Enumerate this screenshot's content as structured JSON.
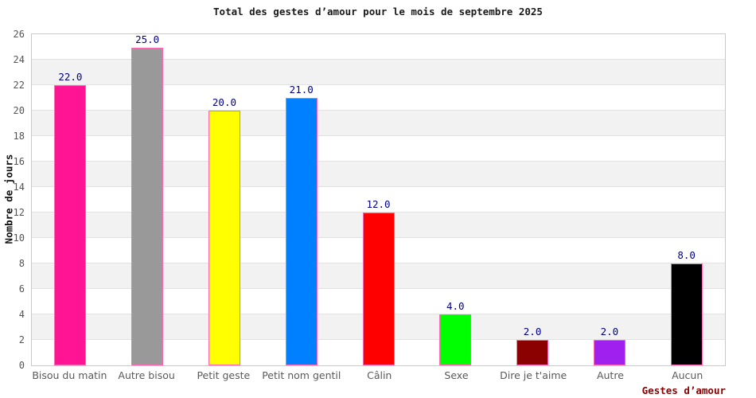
{
  "chart_data": {
    "type": "bar",
    "title": "Total des gestes d’amour pour le mois de septembre 2025",
    "xlabel": "Gestes d’amour",
    "ylabel": "Nombre de jours",
    "categories": [
      "Bisou du matin",
      "Autre bisou",
      "Petit geste",
      "Petit nom gentil",
      "Câlin",
      "Sexe",
      "Dire je t'aime",
      "Autre",
      "Aucun"
    ],
    "values": [
      22,
      25,
      20,
      21,
      12,
      4,
      2,
      2,
      8
    ],
    "value_labels": [
      "22.0",
      "25.0",
      "20.0",
      "21.0",
      "12.0",
      "4.0",
      "2.0",
      "2.0",
      "8.0"
    ],
    "bar_colors": [
      "#ff1493",
      "#999999",
      "#ffff00",
      "#0080ff",
      "#ff0000",
      "#00ff00",
      "#8b0000",
      "#a020f0",
      "#000000"
    ],
    "bar_edge_color": "#ff69b4",
    "value_label_color": "#00008b",
    "xlabel_color": "#8b0000",
    "ylim": [
      0,
      26
    ],
    "ytick_step": 2,
    "yticks": [
      "0",
      "2",
      "4",
      "6",
      "8",
      "10",
      "12",
      "14",
      "16",
      "18",
      "20",
      "22",
      "24",
      "26"
    ],
    "grid": "horizontal gridlines with alternating shaded bands",
    "legend": "none",
    "band_color": "#f2f2f2",
    "gridline_color": "#e2e2e2"
  }
}
